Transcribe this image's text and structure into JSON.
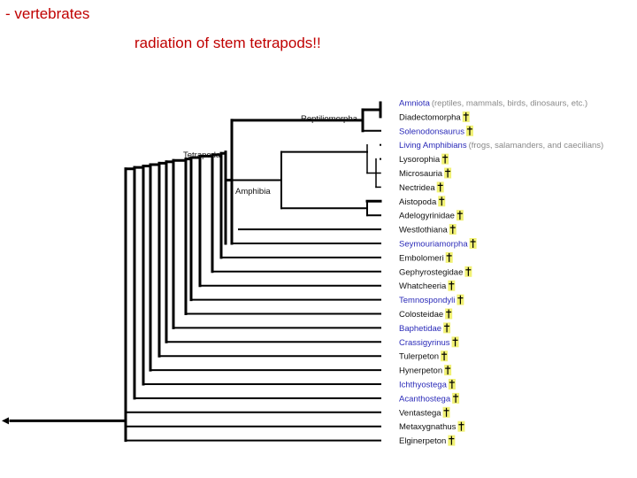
{
  "page": {
    "heading": "- vertebrates",
    "subtitle": "radiation of stem tetrapods!!"
  },
  "colors": {
    "heading": "#c00000",
    "extant_taxon": "#2a2ab8",
    "extinct_taxon": "#111111",
    "note": "#888888",
    "dagger": "#e6e600"
  },
  "cladogram": {
    "clades": {
      "tetrapoda": "Tetrapoda",
      "reptiliomorpha": "Reptiliomorpha",
      "amphibia": "Amphibia"
    },
    "taxa": [
      {
        "name": "Amniota",
        "extant": true,
        "extinct": false,
        "note": "(reptiles, mammals, birds, dinosaurs, etc.)"
      },
      {
        "name": "Diadectomorpha",
        "extant": false,
        "extinct": true
      },
      {
        "name": "Solenodonsaurus",
        "extant": true,
        "extinct": true
      },
      {
        "name": "Living Amphibians",
        "extant": true,
        "extinct": false,
        "note": "(frogs, salamanders, and caecilians)"
      },
      {
        "name": "Lysorophia",
        "extant": false,
        "extinct": true
      },
      {
        "name": "Microsauria",
        "extant": false,
        "extinct": true
      },
      {
        "name": "Nectridea",
        "extant": false,
        "extinct": true
      },
      {
        "name": "Aistopoda",
        "extant": false,
        "extinct": true
      },
      {
        "name": "Adelogyrinidae",
        "extant": false,
        "extinct": true
      },
      {
        "name": "Westlothiana",
        "extant": false,
        "extinct": true
      },
      {
        "name": "Seymouriamorpha",
        "extant": true,
        "extinct": true
      },
      {
        "name": "Embolomeri",
        "extant": false,
        "extinct": true
      },
      {
        "name": "Gephyrostegidae",
        "extant": false,
        "extinct": true
      },
      {
        "name": "Whatcheeria",
        "extant": false,
        "extinct": true
      },
      {
        "name": "Temnospondyli",
        "extant": true,
        "extinct": true
      },
      {
        "name": "Colosteidae",
        "extant": false,
        "extinct": true
      },
      {
        "name": "Baphetidae",
        "extant": true,
        "extinct": true
      },
      {
        "name": "Crassigyrinus",
        "extant": true,
        "extinct": true
      },
      {
        "name": "Tulerpeton",
        "extant": false,
        "extinct": true
      },
      {
        "name": "Hynerpeton",
        "extant": false,
        "extinct": true
      },
      {
        "name": "Ichthyostega",
        "extant": true,
        "extinct": true
      },
      {
        "name": "Acanthostega",
        "extant": true,
        "extinct": true
      },
      {
        "name": "Ventastega",
        "extant": false,
        "extinct": true
      },
      {
        "name": "Metaxygnathus",
        "extant": false,
        "extinct": true
      },
      {
        "name": "Elginerpeton",
        "extant": false,
        "extinct": true
      }
    ]
  }
}
